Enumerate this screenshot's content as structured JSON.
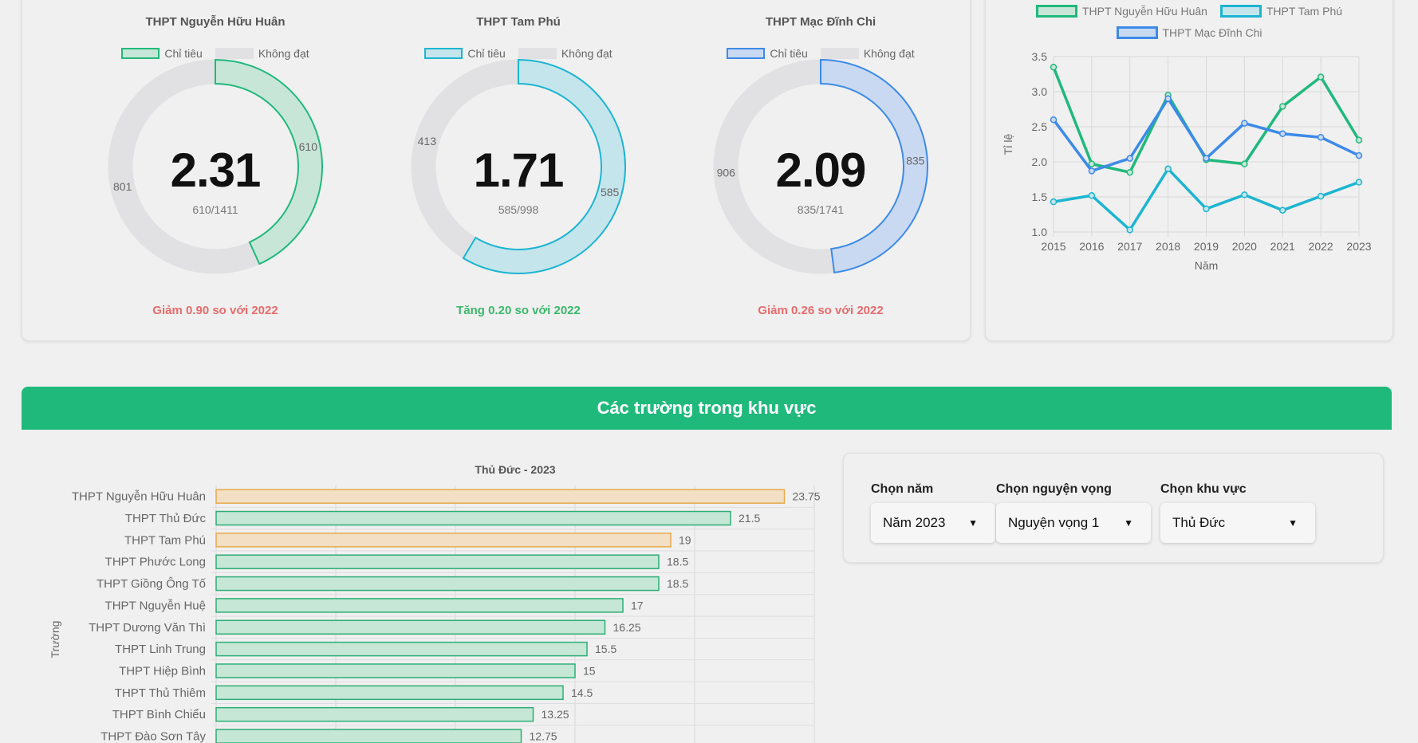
{
  "donuts": [
    {
      "title": "THPT Nguyễn Hữu Huân",
      "legend_a": "Chỉ tiêu",
      "legend_b": "Không đạt",
      "ratio": "2.31",
      "fraction": "610/1411",
      "value": 610,
      "other": 801,
      "color": "#20b97c",
      "fill": "#c8e6d8",
      "change": "Giảm 0.90 so với 2022",
      "trend": "neg"
    },
    {
      "title": "THPT Tam Phú",
      "legend_a": "Chỉ tiêu",
      "legend_b": "Không đạt",
      "ratio": "1.71",
      "fraction": "585/998",
      "value": 585,
      "other": 413,
      "color": "#1cb5d1",
      "fill": "#c5e5ec",
      "change": "Tăng 0.20 so với 2022",
      "trend": "pos"
    },
    {
      "title": "THPT Mạc Đĩnh Chi",
      "legend_a": "Chỉ tiêu",
      "legend_b": "Không đạt",
      "ratio": "2.09",
      "fraction": "835/1741",
      "value": 835,
      "other": 906,
      "color": "#3d8ae8",
      "fill": "#c9d9f2",
      "change": "Giảm 0.26 so với 2022",
      "trend": "neg"
    }
  ],
  "line_chart": {
    "type": "line",
    "x": [
      2015,
      2016,
      2017,
      2018,
      2019,
      2020,
      2021,
      2022,
      2023
    ],
    "xlabel": "Năm",
    "ylabel": "Tỉ lệ",
    "ylim": [
      1.0,
      3.5
    ],
    "yticks": [
      "1.0",
      "1.5",
      "2.0",
      "2.5",
      "3.0",
      "3.5"
    ],
    "series": [
      {
        "name": "THPT Nguyễn Hữu Huân",
        "color": "#20b97c",
        "fill": "#c8e6d8",
        "values": [
          3.35,
          1.97,
          1.85,
          2.95,
          2.03,
          1.97,
          2.79,
          3.21,
          2.31
        ]
      },
      {
        "name": "THPT Tam Phú",
        "color": "#1cb5d1",
        "fill": "#c5e5ec",
        "values": [
          1.43,
          1.52,
          1.03,
          1.9,
          1.33,
          1.53,
          1.31,
          1.51,
          1.71
        ]
      },
      {
        "name": "THPT Mạc Đĩnh Chi",
        "color": "#3d8ae8",
        "fill": "#c9d9f2",
        "values": [
          2.6,
          1.87,
          2.05,
          2.9,
          2.05,
          2.55,
          2.4,
          2.35,
          2.09
        ]
      }
    ]
  },
  "section": {
    "title": "Các trường trong khu vực"
  },
  "chart_data": {
    "type": "bar",
    "title": "Thủ Đức - 2023",
    "ylabel": "Trường",
    "xlim": [
      0,
      25
    ],
    "categories": [
      "THPT Nguyễn Hữu Huân",
      "THPT Thủ Đức",
      "THPT Tam Phú",
      "THPT Phước Long",
      "THPT Giồng Ông Tố",
      "THPT Nguyễn Huệ",
      "THPT Dương Văn Thì",
      "THPT Linh Trung",
      "THPT Hiệp Bình",
      "THPT Thủ Thiêm",
      "THPT Bình Chiểu",
      "THPT Đào Sơn Tây"
    ],
    "values": [
      23.75,
      21.5,
      19,
      18.5,
      18.5,
      17,
      16.25,
      15.5,
      15,
      14.5,
      13.25,
      12.75
    ],
    "labels": [
      "23.75",
      "21.5",
      "19",
      "18.5",
      "18.5",
      "17",
      "16.25",
      "15.5",
      "15",
      "14.5",
      "13.25",
      "12.75"
    ],
    "highlighted": [
      true,
      false,
      true,
      false,
      false,
      false,
      false,
      false,
      false,
      false,
      false,
      false
    ],
    "colors": {
      "normal_fill": "#c6e6d6",
      "normal_stroke": "#2dae77",
      "highlight_fill": "#f2dfc4",
      "highlight_stroke": "#e8a94c"
    }
  },
  "filters": [
    {
      "label": "Chọn năm",
      "value": "Năm 2023"
    },
    {
      "label": "Chọn nguyện vọng",
      "value": "Nguyện vọng 1"
    },
    {
      "label": "Chọn khu vực",
      "value": "Thủ Đức"
    }
  ]
}
